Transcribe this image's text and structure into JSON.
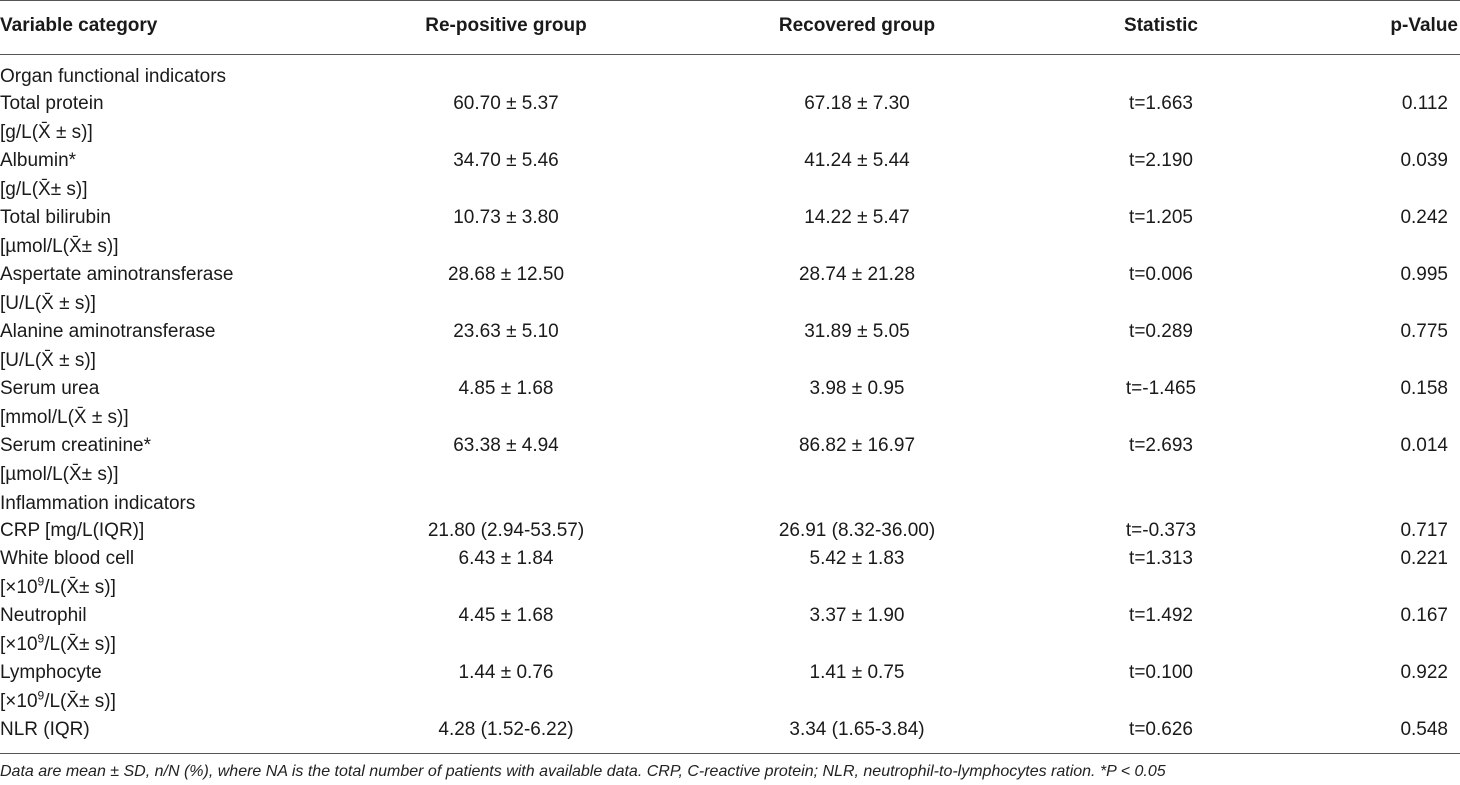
{
  "columns": [
    "Variable category",
    "Re-positive group",
    "Recovered group",
    "Statistic",
    "p-Value"
  ],
  "rows": [
    {
      "type": "section",
      "label": "Organ functional indicators"
    },
    {
      "type": "data",
      "label": "Total protein",
      "unit": "[g/L(X̄ ± s)]",
      "re_positive": "60.70 ± 5.37",
      "recovered": "67.18 ± 7.30",
      "statistic": "t=1.663",
      "p": "0.112"
    },
    {
      "type": "data",
      "label": "Albumin*",
      "unit": "[g/L(X̄± s)]",
      "re_positive": "34.70 ± 5.46",
      "recovered": "41.24 ± 5.44",
      "statistic": "t=2.190",
      "p": "0.039"
    },
    {
      "type": "data",
      "label": "Total bilirubin",
      "unit": "[µmol/L(X̄± s)]",
      "re_positive": "10.73 ± 3.80",
      "recovered": "14.22 ± 5.47",
      "statistic": "t=1.205",
      "p": "0.242"
    },
    {
      "type": "data",
      "label": "Aspertate aminotransferase",
      "unit": "[U/L(X̄ ± s)]",
      "re_positive": "28.68 ± 12.50",
      "recovered": "28.74 ± 21.28",
      "statistic": "t=0.006",
      "p": "0.995"
    },
    {
      "type": "data",
      "label": "Alanine aminotransferase",
      "unit": "[U/L(X̄ ± s)]",
      "re_positive": "23.63 ± 5.10",
      "recovered": "31.89 ± 5.05",
      "statistic": "t=0.289",
      "p": "0.775"
    },
    {
      "type": "data",
      "label": "Serum urea",
      "unit": "[mmol/L(X̄ ± s)]",
      "re_positive": "4.85 ± 1.68",
      "recovered": "3.98 ± 0.95",
      "statistic": "t=-1.465",
      "p": "0.158"
    },
    {
      "type": "data",
      "label": "Serum creatinine*",
      "unit": "[µmol/L(X̄± s)]",
      "re_positive": "63.38 ± 4.94",
      "recovered": "86.82 ± 16.97",
      "statistic": "t=2.693",
      "p": "0.014"
    },
    {
      "type": "section",
      "label": "Inflammation indicators"
    },
    {
      "type": "data",
      "label": "CRP [mg/L(IQR)]",
      "unit": "",
      "re_positive": "21.80 (2.94-53.57)",
      "recovered": "26.91 (8.32-36.00)",
      "statistic": "t=-0.373",
      "p": "0.717"
    },
    {
      "type": "data",
      "label": "White blood cell",
      "unit_pre": "[×10",
      "unit_sup": "9",
      "unit_post": "/L(X̄± s)]",
      "re_positive": "6.43 ± 1.84",
      "recovered": "5.42 ± 1.83",
      "statistic": "t=1.313",
      "p": "0.221"
    },
    {
      "type": "data",
      "label": "Neutrophil",
      "unit_pre": "[×10",
      "unit_sup": "9",
      "unit_post": "/L(X̄± s)]",
      "re_positive": "4.45 ± 1.68",
      "recovered": "3.37 ± 1.90",
      "statistic": "t=1.492",
      "p": "0.167"
    },
    {
      "type": "data",
      "label": "Lymphocyte",
      "unit_pre": "[×10",
      "unit_sup": "9",
      "unit_post": "/L(X̄± s)]",
      "re_positive": "1.44 ± 0.76",
      "recovered": "1.41 ± 0.75",
      "statistic": "t=0.100",
      "p": "0.922"
    },
    {
      "type": "data",
      "label": "NLR (IQR)",
      "unit": "",
      "re_positive": "4.28 (1.52-6.22)",
      "recovered": "3.34 (1.65-3.84)",
      "statistic": "t=0.626",
      "p": "0.548"
    }
  ],
  "footnote": "Data are mean ± SD, n/N (%), where NA is the total number of patients with available data. CRP, C-reactive protein; NLR, neutrophil-to-lymphocytes ration. *P < 0.05"
}
